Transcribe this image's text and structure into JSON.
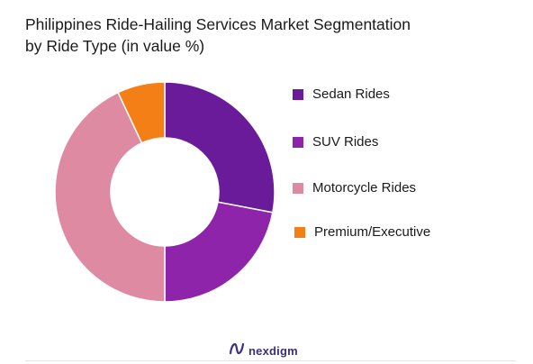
{
  "chart_data": {
    "type": "donut",
    "title_lines": [
      "Philippines Ride-Hailing Services Market Segmentation",
      "by Ride Type (in value %)"
    ],
    "categories": [
      "Sedan Rides",
      "SUV Rides",
      "Motorcycle Rides",
      "Premium/Executive"
    ],
    "values": [
      28,
      22,
      43,
      7
    ],
    "colors": [
      "#6a1b9a",
      "#8e24aa",
      "#de8aa3",
      "#f57f17"
    ],
    "legend_position": "right",
    "start_angle_deg": 0,
    "direction": "clockwise"
  },
  "brand": {
    "name": "nexdigm",
    "logo_icon": "nexdigm-logo-icon",
    "logo_color": "#3d2f7a"
  }
}
